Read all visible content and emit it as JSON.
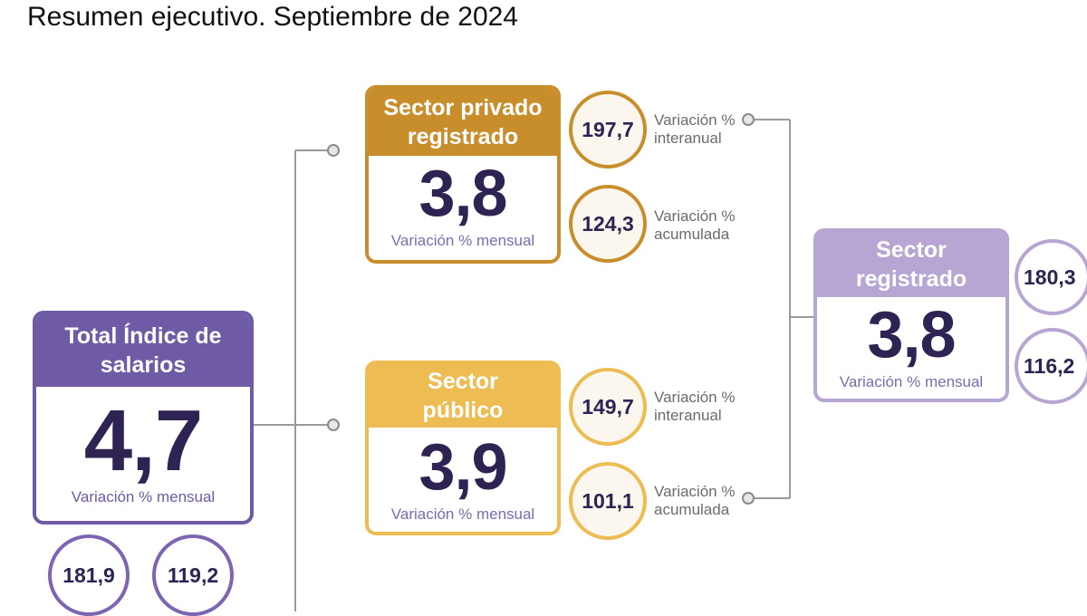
{
  "title": "Resumen ejecutivo. Septiembre de 2024",
  "total": {
    "header": "Total Índice de salarios",
    "value": "4,7",
    "label": "Variación % mensual",
    "interanual": "181,9",
    "acumulada": "119,2"
  },
  "privado": {
    "header": "Sector privado registrado",
    "value": "3,8",
    "label": "Variación % mensual",
    "interanual": "197,7",
    "acumulada": "124,3",
    "interanual_label": "Variación % interanual",
    "acumulada_label": "Variación % acumulada"
  },
  "publico": {
    "header": "Sector público",
    "value": "3,9",
    "label": "Variación % mensual",
    "interanual": "149,7",
    "acumulada": "101,1",
    "interanual_label": "Variación % interanual",
    "acumulada_label": "Variación % acumulada"
  },
  "registrado": {
    "header": "Sector registrado",
    "value": "3,8",
    "label": "Variación % mensual",
    "interanual": "180,3",
    "acumulada": "116,2"
  },
  "colors": {
    "purple": "#6f5aa6",
    "brown": "#c98e2c",
    "gold": "#edbc52",
    "lavender": "#b7a5d3",
    "connector": "#9a9a9a"
  }
}
